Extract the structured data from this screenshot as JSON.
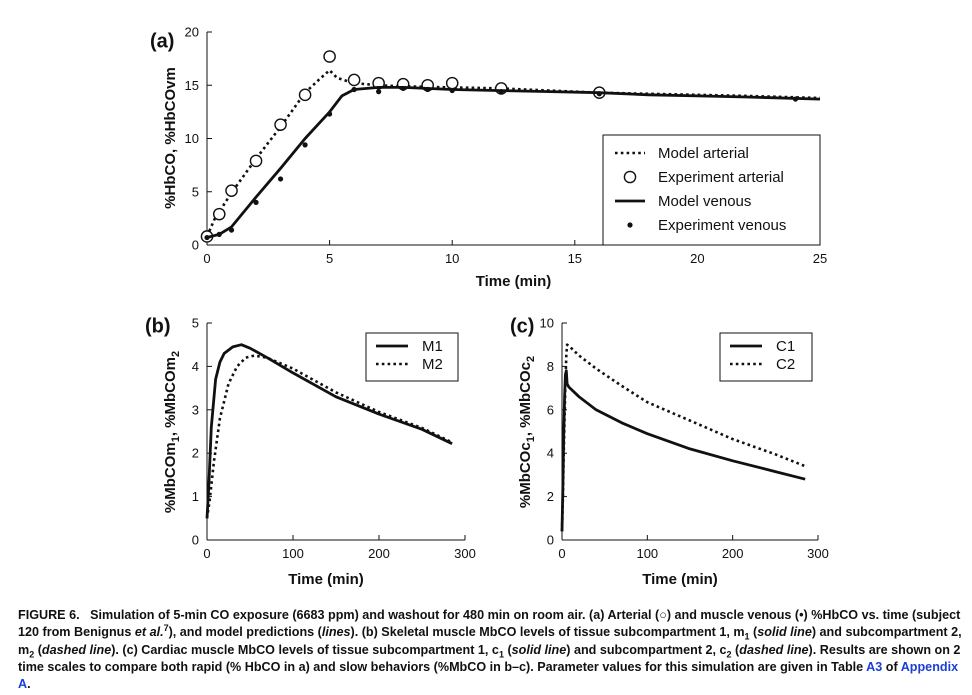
{
  "chart_data": [
    {
      "type": "line",
      "panel_label": "(a)",
      "xlabel": "Time (min)",
      "ylabel": "%HbCO, %HbCOvm",
      "xlim": [
        0,
        25
      ],
      "ylim": [
        0,
        20
      ],
      "xticks": [
        "0",
        "5",
        "10",
        "15",
        "20",
        "25"
      ],
      "yticks": [
        "0",
        "5",
        "10",
        "15",
        "20"
      ],
      "legend_position": "center-right",
      "series": [
        {
          "name": "Model arterial",
          "style": "dotted-line",
          "x": [
            0,
            0.3,
            1,
            2,
            3,
            4,
            4.6,
            5,
            5.3,
            5.7,
            6,
            7,
            8,
            10,
            12,
            14,
            16,
            18,
            20,
            22,
            25
          ],
          "y": [
            0.8,
            2.4,
            4.9,
            8.1,
            11.1,
            14.3,
            15.6,
            16.4,
            15.7,
            15.4,
            15.2,
            15.0,
            14.9,
            14.8,
            14.7,
            14.5,
            14.3,
            14.2,
            14.1,
            14.0,
            13.8
          ]
        },
        {
          "name": "Experiment arterial",
          "style": "open-circle",
          "x": [
            0,
            0.5,
            1,
            2,
            3,
            4,
            5,
            6,
            7,
            8,
            9,
            10,
            12,
            16
          ],
          "y": [
            0.8,
            2.9,
            5.1,
            7.9,
            11.3,
            14.1,
            17.7,
            15.5,
            15.2,
            15.1,
            15.0,
            15.2,
            14.7,
            14.3
          ]
        },
        {
          "name": "Model venous",
          "style": "solid-line",
          "x": [
            0,
            0.5,
            1,
            2,
            3,
            4,
            5,
            5.5,
            6,
            7,
            8,
            10,
            12,
            14,
            16,
            18,
            20,
            22,
            25
          ],
          "y": [
            0.7,
            1.0,
            1.7,
            4.5,
            7.2,
            10.0,
            12.5,
            14.0,
            14.6,
            14.8,
            14.8,
            14.6,
            14.5,
            14.4,
            14.3,
            14.1,
            14.0,
            13.9,
            13.7
          ]
        },
        {
          "name": "Experiment venous",
          "style": "filled-dot",
          "x": [
            0,
            0.5,
            1,
            2,
            3,
            4,
            5,
            6,
            7,
            8,
            9,
            10,
            12,
            16,
            24
          ],
          "y": [
            0.7,
            1.0,
            1.4,
            4.0,
            6.2,
            9.4,
            12.3,
            14.6,
            14.4,
            14.7,
            14.6,
            14.5,
            14.4,
            14.2,
            13.7
          ]
        }
      ]
    },
    {
      "type": "line",
      "panel_label": "(b)",
      "xlabel": "Time (min)",
      "ylabel": "%MbCOm1, %MbCOm2",
      "ylabel_parts": {
        "a": "%MbCOm",
        "a_sub": "1",
        "sep": ", %MbCOm",
        "b_sub": "2"
      },
      "xlim": [
        0,
        300
      ],
      "ylim": [
        0,
        5
      ],
      "xticks": [
        "0",
        "100",
        "200",
        "300"
      ],
      "yticks": [
        "0",
        "1",
        "2",
        "3",
        "4",
        "5"
      ],
      "legend_position": "top-right",
      "series": [
        {
          "name": "M1",
          "style": "solid-line",
          "x": [
            0,
            2,
            5,
            10,
            15,
            20,
            30,
            40,
            50,
            70,
            100,
            150,
            200,
            250,
            285
          ],
          "y": [
            0.5,
            1.2,
            2.6,
            3.7,
            4.1,
            4.3,
            4.45,
            4.5,
            4.42,
            4.2,
            3.85,
            3.3,
            2.9,
            2.55,
            2.22
          ]
        },
        {
          "name": "M2",
          "style": "dotted-line",
          "x": [
            0,
            3,
            8,
            15,
            25,
            35,
            45,
            55,
            70,
            100,
            150,
            200,
            250,
            285
          ],
          "y": [
            0.5,
            0.9,
            1.8,
            2.8,
            3.6,
            4.0,
            4.2,
            4.25,
            4.2,
            3.95,
            3.4,
            2.95,
            2.58,
            2.25
          ]
        }
      ]
    },
    {
      "type": "line",
      "panel_label": "(c)",
      "xlabel": "Time (min)",
      "ylabel": "%MbCOc1, %MbCOc2",
      "ylabel_parts": {
        "a": "%MbCOc",
        "a_sub": "1",
        "sep": ", %MbCOc",
        "b_sub": "2"
      },
      "xlim": [
        0,
        300
      ],
      "ylim": [
        0,
        10
      ],
      "xticks": [
        "0",
        "100",
        "200",
        "300"
      ],
      "yticks": [
        "0",
        "2",
        "4",
        "6",
        "8",
        "10"
      ],
      "legend_position": "top-right",
      "series": [
        {
          "name": "C1",
          "style": "solid-line",
          "x": [
            0,
            1,
            2,
            3,
            4,
            5,
            6,
            8,
            12,
            20,
            40,
            70,
            100,
            150,
            200,
            250,
            285
          ],
          "y": [
            0.4,
            2.5,
            4.8,
            6.6,
            7.6,
            7.8,
            7.2,
            7.05,
            6.9,
            6.6,
            6.0,
            5.4,
            4.9,
            4.2,
            3.65,
            3.15,
            2.8
          ]
        },
        {
          "name": "C2",
          "style": "dotted-line",
          "x": [
            0,
            1,
            2,
            3,
            4,
            5,
            6,
            8,
            12,
            20,
            40,
            70,
            100,
            150,
            200,
            250,
            285
          ],
          "y": [
            0.4,
            2.0,
            3.9,
            5.7,
            7.2,
            8.5,
            9.0,
            8.95,
            8.8,
            8.5,
            7.9,
            7.1,
            6.35,
            5.5,
            4.65,
            3.95,
            3.4
          ]
        }
      ]
    }
  ],
  "caption": {
    "label": "FIGURE 6.",
    "segments": [
      {
        "t": "Simulation of 5-min CO exposure (6683 ppm) and washout for 480 min on room air. (a) Arterial (○) and muscle venous (•) %HbCO vs. time (subject 120 from Benignus "
      },
      {
        "t": "et al.",
        "i": true
      },
      {
        "t": "7",
        "sup": true
      },
      {
        "t": "), and model predictions ("
      },
      {
        "t": "lines",
        "i": true
      },
      {
        "t": "). (b) Skeletal muscle MbCO levels of tissue subcompartment 1, m"
      },
      {
        "t": "1",
        "sub": true
      },
      {
        "t": " ("
      },
      {
        "t": "solid line",
        "i": true
      },
      {
        "t": ") and subcompartment 2, m"
      },
      {
        "t": "2",
        "sub": true
      },
      {
        "t": " ("
      },
      {
        "t": "dashed line",
        "i": true
      },
      {
        "t": "). (c) Cardiac muscle MbCO levels of tissue subcompartment 1, c"
      },
      {
        "t": "1",
        "sub": true
      },
      {
        "t": " ("
      },
      {
        "t": "solid line",
        "i": true
      },
      {
        "t": ") and subcompartment 2, c"
      },
      {
        "t": "2",
        "sub": true
      },
      {
        "t": " ("
      },
      {
        "t": "dashed line",
        "i": true
      },
      {
        "t": "). Results are shown on 2 time scales to compare both rapid (% HbCO in a) and slow behaviors (%MbCO in b–c). Parameter values for this simulation are given in Table "
      },
      {
        "t": "A3",
        "link": true
      },
      {
        "t": " of "
      },
      {
        "t": "Appendix A",
        "link": true
      },
      {
        "t": "."
      }
    ]
  }
}
